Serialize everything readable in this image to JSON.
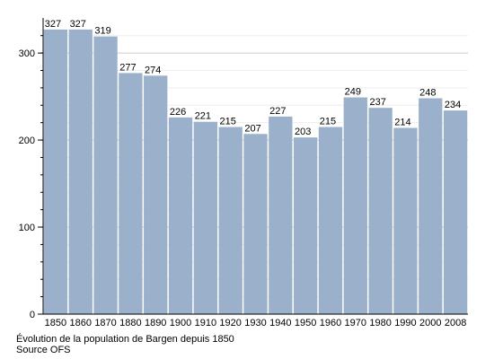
{
  "chart_data": {
    "type": "bar",
    "categories": [
      "1850",
      "1860",
      "1870",
      "1880",
      "1890",
      "1900",
      "1910",
      "1920",
      "1930",
      "1940",
      "1950",
      "1960",
      "1970",
      "1980",
      "1990",
      "2000",
      "2008"
    ],
    "values": [
      327,
      327,
      319,
      277,
      274,
      226,
      221,
      215,
      207,
      227,
      203,
      215,
      249,
      237,
      214,
      248,
      234
    ],
    "ylim": [
      0,
      330
    ],
    "yticks": [
      0,
      100,
      200,
      300
    ],
    "grid": true,
    "bar_color": "#9bb1cb",
    "grid_color": "#cccccc"
  },
  "caption": {
    "line1": "Évolution de la population de Bargen depuis 1850",
    "line2": "Source OFS"
  }
}
